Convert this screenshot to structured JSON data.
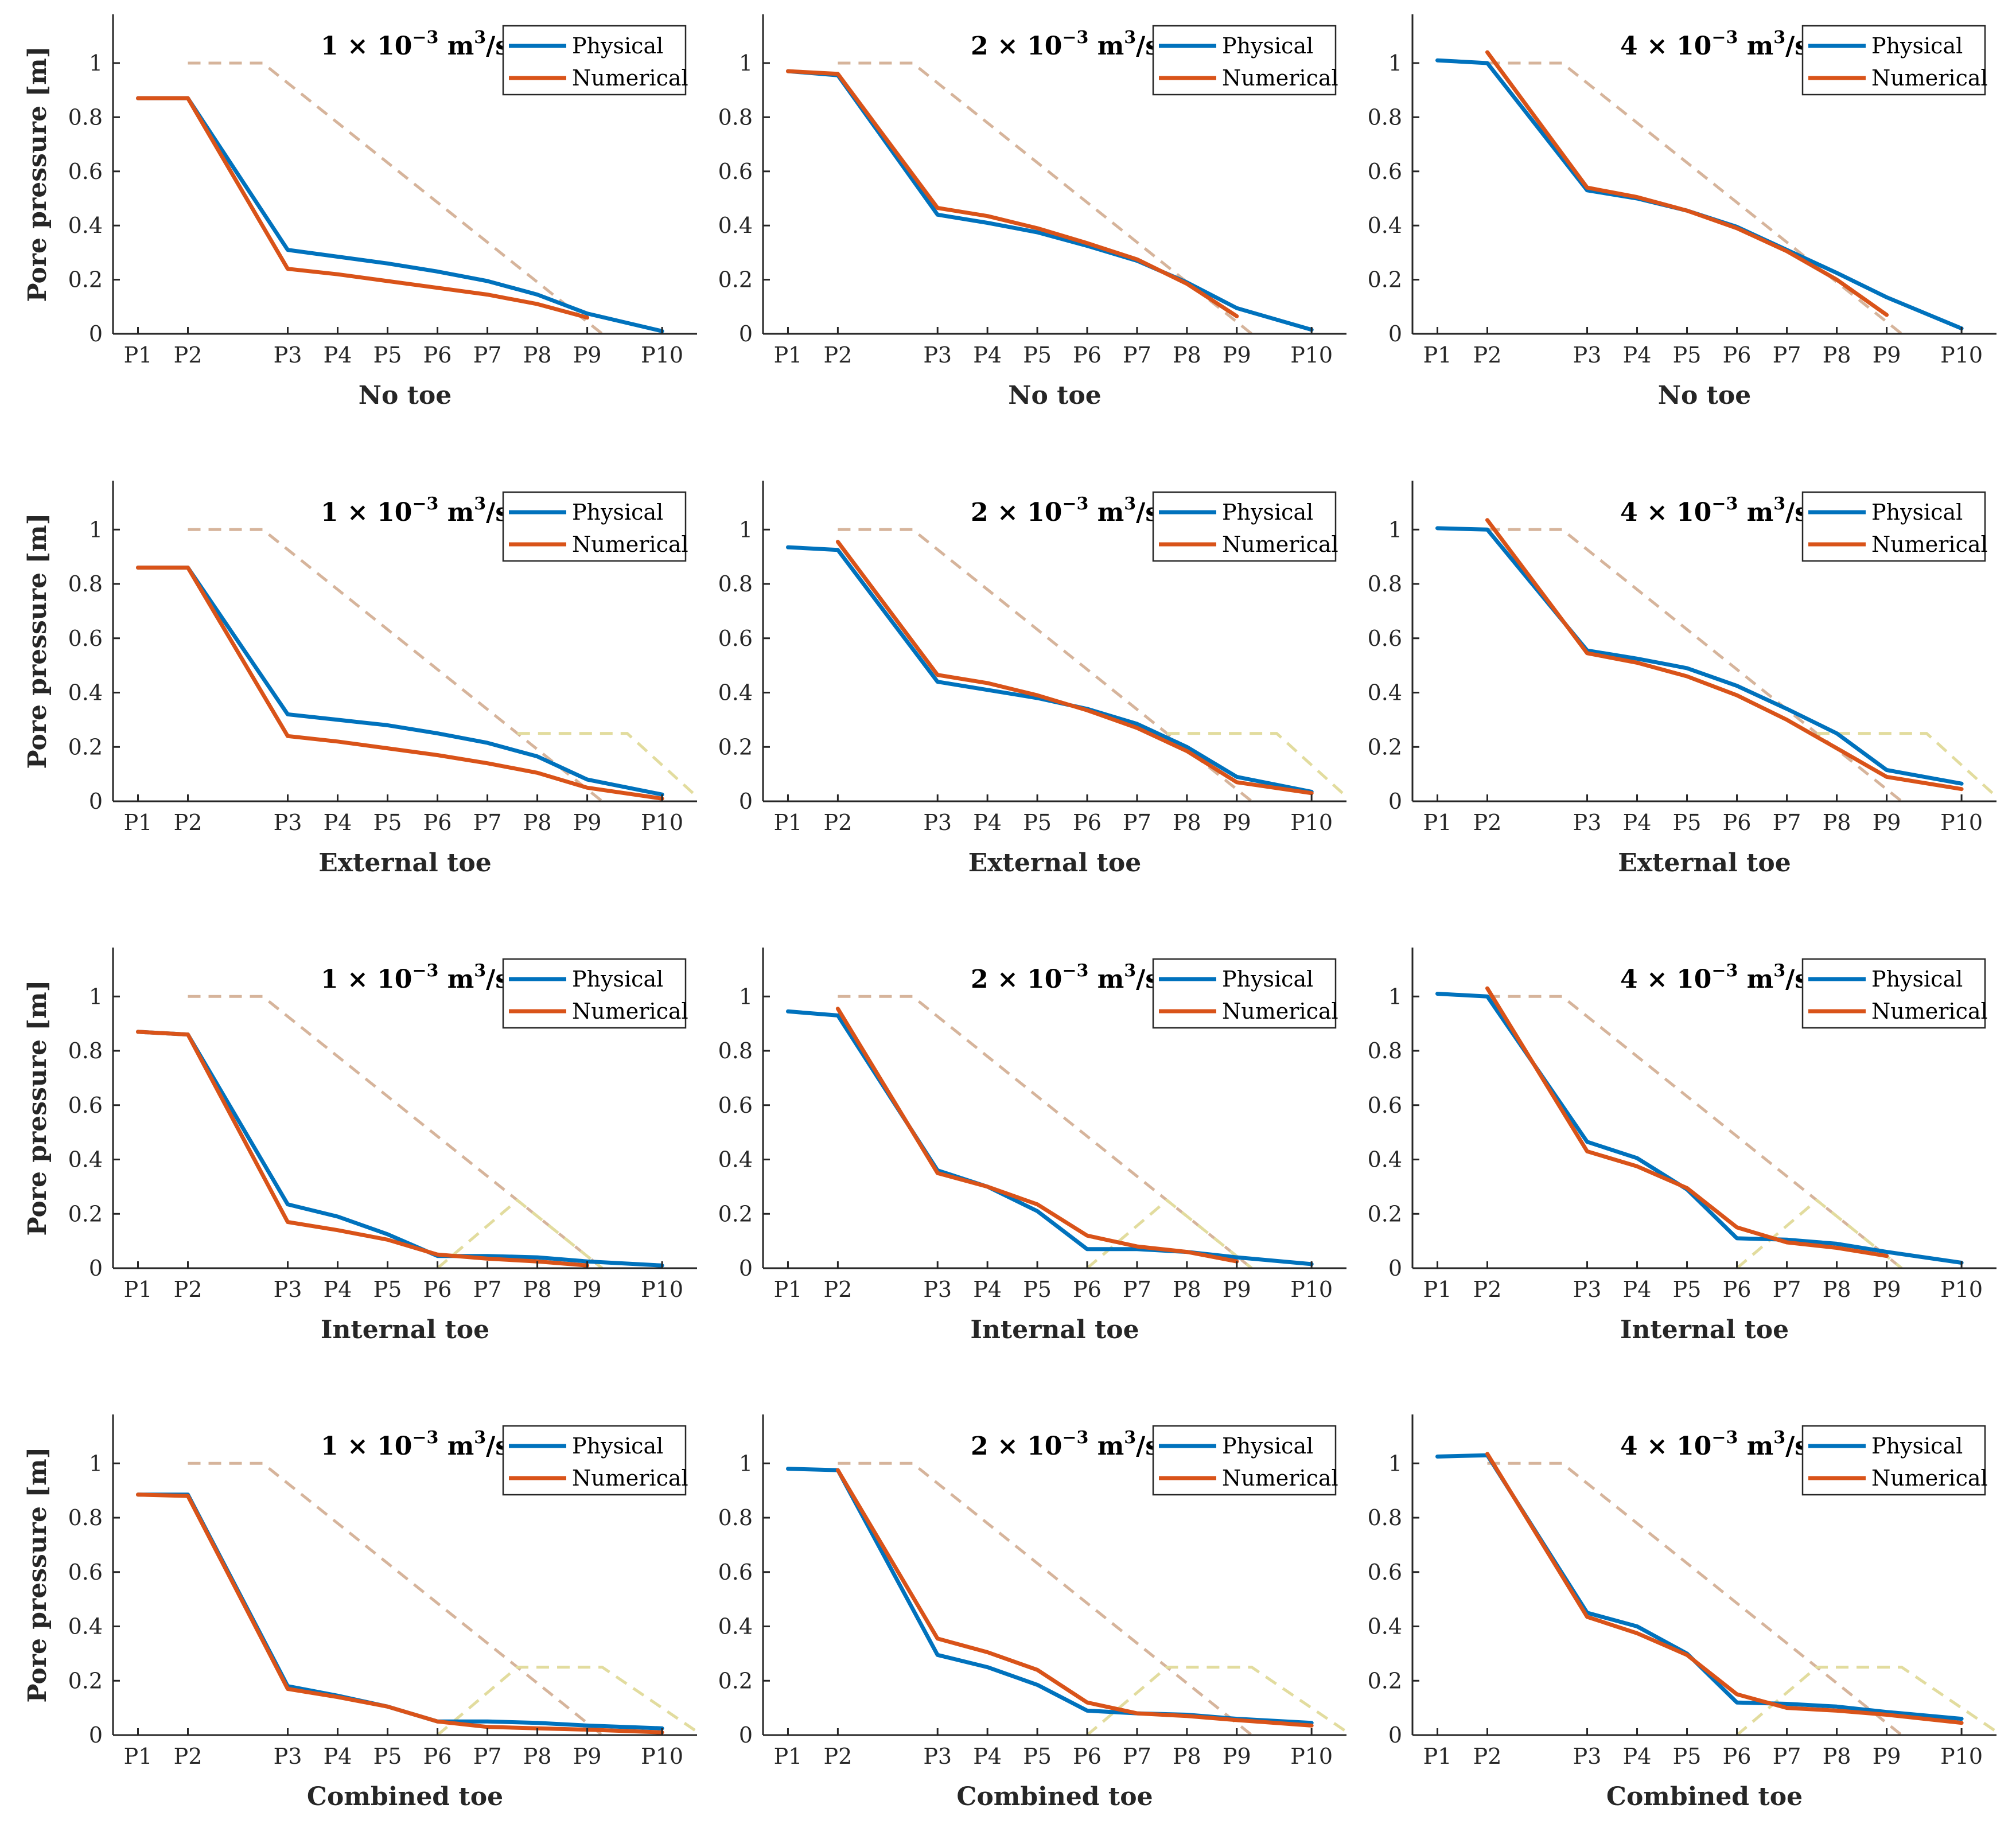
{
  "colors": {
    "physical": "#0072BD",
    "numerical": "#D95319",
    "embankment": "#d6b49b",
    "toe": "#e2dc9e",
    "axis": "#262626"
  },
  "legend": [
    "Physical",
    "Numerical"
  ],
  "ylabel": "Pore pressure [m]",
  "x_tick_labels": [
    "P1",
    "P2",
    "P3",
    "P4",
    "P5",
    "P6",
    "P7",
    "P8",
    "P9",
    "P10"
  ],
  "x_positions": [
    1,
    2,
    4,
    5,
    6,
    7,
    8,
    9,
    10,
    11.5
  ],
  "y_tick_labels": [
    "0",
    "0.2",
    "0.4",
    "0.6",
    "0.8",
    "1"
  ],
  "chart_data": [
    {
      "type": "line",
      "title": "1 × 10⁻³ m³/s",
      "title_base": "1",
      "xlabel": "No toe",
      "xlim": [
        0.5,
        12.2
      ],
      "ylim": [
        0,
        1.18
      ],
      "physical": [
        0.87,
        0.87,
        0.31,
        0.285,
        0.26,
        0.23,
        0.195,
        0.145,
        0.075,
        0.01
      ],
      "numerical": [
        0.87,
        0.87,
        0.24,
        0.22,
        0.195,
        0.17,
        0.145,
        0.11,
        0.06
      ],
      "embankment": [
        [
          2,
          1.0
        ],
        [
          3.5,
          1.0
        ],
        [
          10.3,
          0
        ]
      ],
      "toe": []
    },
    {
      "type": "line",
      "title": "2 × 10⁻³ m³/s",
      "title_base": "2",
      "xlabel": "No toe",
      "xlim": [
        0.5,
        12.2
      ],
      "ylim": [
        0,
        1.18
      ],
      "physical": [
        0.97,
        0.955,
        0.44,
        0.41,
        0.375,
        0.325,
        0.27,
        0.19,
        0.095,
        0.015
      ],
      "numerical": [
        0.97,
        0.96,
        0.465,
        0.435,
        0.39,
        0.335,
        0.275,
        0.185,
        0.065
      ],
      "embankment": [
        [
          2,
          1.0
        ],
        [
          3.5,
          1.0
        ],
        [
          10.3,
          0
        ]
      ],
      "toe": []
    },
    {
      "type": "line",
      "title": "4 × 10⁻³ m³/s",
      "title_base": "4",
      "xlabel": "No toe",
      "xlim": [
        0.5,
        12.2
      ],
      "ylim": [
        0,
        1.18
      ],
      "physical": [
        1.01,
        1.0,
        0.53,
        0.5,
        0.455,
        0.395,
        0.31,
        0.225,
        0.135,
        0.02
      ],
      "numerical": [
        null,
        1.04,
        0.54,
        0.505,
        0.455,
        0.39,
        0.305,
        0.2,
        0.07
      ],
      "embankment": [
        [
          2,
          1.0
        ],
        [
          3.5,
          1.0
        ],
        [
          10.3,
          0
        ]
      ],
      "toe": []
    },
    {
      "type": "line",
      "title": "1 × 10⁻³ m³/s",
      "title_base": "1",
      "xlabel": "External toe",
      "xlim": [
        0.5,
        12.2
      ],
      "ylim": [
        0,
        1.18
      ],
      "physical": [
        0.86,
        0.86,
        0.32,
        0.3,
        0.28,
        0.25,
        0.215,
        0.165,
        0.08,
        0.025
      ],
      "numerical": [
        0.86,
        0.86,
        0.24,
        0.22,
        0.195,
        0.17,
        0.14,
        0.105,
        0.05,
        0.01
      ],
      "embankment": [
        [
          2,
          1.0
        ],
        [
          3.5,
          1.0
        ],
        [
          10.3,
          0
        ]
      ],
      "toe": [
        [
          8.6,
          0.25
        ],
        [
          10.8,
          0.25
        ],
        [
          12.3,
          0
        ]
      ]
    },
    {
      "type": "line",
      "title": "2 × 10⁻³ m³/s",
      "title_base": "2",
      "xlabel": "External toe",
      "xlim": [
        0.5,
        12.2
      ],
      "ylim": [
        0,
        1.18
      ],
      "physical": [
        0.935,
        0.925,
        0.44,
        0.41,
        0.38,
        0.34,
        0.285,
        0.2,
        0.09,
        0.035
      ],
      "numerical": [
        null,
        0.955,
        0.465,
        0.435,
        0.39,
        0.335,
        0.27,
        0.185,
        0.07,
        0.03
      ],
      "embankment": [
        [
          2,
          1.0
        ],
        [
          3.5,
          1.0
        ],
        [
          10.3,
          0
        ]
      ],
      "toe": [
        [
          8.6,
          0.25
        ],
        [
          10.8,
          0.25
        ],
        [
          12.3,
          0
        ]
      ]
    },
    {
      "type": "line",
      "title": "4 × 10⁻³ m³/s",
      "title_base": "4",
      "xlabel": "External toe",
      "xlim": [
        0.5,
        12.2
      ],
      "ylim": [
        0,
        1.18
      ],
      "physical": [
        1.005,
        1.0,
        0.555,
        0.525,
        0.49,
        0.425,
        0.34,
        0.25,
        0.115,
        0.065
      ],
      "numerical": [
        null,
        1.035,
        0.545,
        0.51,
        0.46,
        0.39,
        0.3,
        0.195,
        0.09,
        0.045
      ],
      "embankment": [
        [
          2,
          1.0
        ],
        [
          3.5,
          1.0
        ],
        [
          10.3,
          0
        ]
      ],
      "toe": [
        [
          8.6,
          0.25
        ],
        [
          10.8,
          0.25
        ],
        [
          12.3,
          0
        ]
      ]
    },
    {
      "type": "line",
      "title": "1 × 10⁻³ m³/s",
      "title_base": "1",
      "xlabel": "Internal toe",
      "xlim": [
        0.5,
        12.2
      ],
      "ylim": [
        0,
        1.18
      ],
      "physical": [
        0.87,
        0.86,
        0.235,
        0.19,
        0.125,
        0.045,
        0.045,
        0.04,
        0.025,
        0.01
      ],
      "numerical": [
        0.87,
        0.86,
        0.17,
        0.14,
        0.105,
        0.05,
        0.035,
        0.025,
        0.01
      ],
      "embankment": [
        [
          2,
          1.0
        ],
        [
          3.5,
          1.0
        ],
        [
          10.3,
          0
        ]
      ],
      "toe": [
        [
          7.0,
          0
        ],
        [
          8.6,
          0.25
        ],
        [
          10.3,
          0
        ]
      ]
    },
    {
      "type": "line",
      "title": "2 × 10⁻³ m³/s",
      "title_base": "2",
      "xlabel": "Internal toe",
      "xlim": [
        0.5,
        12.2
      ],
      "ylim": [
        0,
        1.18
      ],
      "physical": [
        0.945,
        0.93,
        0.36,
        0.3,
        0.21,
        0.07,
        0.07,
        0.06,
        0.04,
        0.015
      ],
      "numerical": [
        null,
        0.955,
        0.35,
        0.3,
        0.235,
        0.12,
        0.08,
        0.06,
        0.025
      ],
      "embankment": [
        [
          2,
          1.0
        ],
        [
          3.5,
          1.0
        ],
        [
          10.3,
          0
        ]
      ],
      "toe": [
        [
          7.0,
          0
        ],
        [
          8.6,
          0.25
        ],
        [
          10.3,
          0
        ]
      ]
    },
    {
      "type": "line",
      "title": "4 × 10⁻³ m³/s",
      "title_base": "4",
      "xlabel": "Internal toe",
      "xlim": [
        0.5,
        12.2
      ],
      "ylim": [
        0,
        1.18
      ],
      "physical": [
        1.01,
        1.0,
        0.465,
        0.405,
        0.29,
        0.11,
        0.105,
        0.09,
        0.06,
        0.02
      ],
      "numerical": [
        null,
        1.03,
        0.43,
        0.375,
        0.295,
        0.15,
        0.095,
        0.075,
        0.045
      ],
      "embankment": [
        [
          2,
          1.0
        ],
        [
          3.5,
          1.0
        ],
        [
          10.3,
          0
        ]
      ],
      "toe": [
        [
          7.0,
          0
        ],
        [
          8.6,
          0.25
        ],
        [
          10.3,
          0
        ]
      ]
    },
    {
      "type": "line",
      "title": "1 × 10⁻³ m³/s",
      "title_base": "1",
      "xlabel": "Combined toe",
      "xlim": [
        0.5,
        12.2
      ],
      "ylim": [
        0,
        1.18
      ],
      "physical": [
        0.885,
        0.885,
        0.18,
        0.145,
        0.105,
        0.05,
        0.05,
        0.045,
        0.035,
        0.025
      ],
      "numerical": [
        0.885,
        0.88,
        0.17,
        0.14,
        0.105,
        0.05,
        0.03,
        0.025,
        0.02,
        0.01
      ],
      "embankment": [
        [
          2,
          1.0
        ],
        [
          3.5,
          1.0
        ],
        [
          10.3,
          0
        ]
      ],
      "toe": [
        [
          7.0,
          0
        ],
        [
          8.6,
          0.25
        ],
        [
          10.3,
          0.25
        ],
        [
          12.3,
          0
        ]
      ]
    },
    {
      "type": "line",
      "title": "2 × 10⁻³ m³/s",
      "title_base": "2",
      "xlabel": "Combined toe",
      "xlim": [
        0.5,
        12.2
      ],
      "ylim": [
        0,
        1.18
      ],
      "physical": [
        0.98,
        0.975,
        0.295,
        0.25,
        0.185,
        0.09,
        0.08,
        0.075,
        0.06,
        0.045
      ],
      "numerical": [
        null,
        0.975,
        0.355,
        0.305,
        0.24,
        0.12,
        0.08,
        0.07,
        0.055,
        0.035
      ],
      "embankment": [
        [
          2,
          1.0
        ],
        [
          3.5,
          1.0
        ],
        [
          10.3,
          0
        ]
      ],
      "toe": [
        [
          7.0,
          0
        ],
        [
          8.6,
          0.25
        ],
        [
          10.3,
          0.25
        ],
        [
          12.3,
          0
        ]
      ]
    },
    {
      "type": "line",
      "title": "4 × 10⁻³ m³/s",
      "title_base": "4",
      "xlabel": "Combined toe",
      "xlim": [
        0.5,
        12.2
      ],
      "ylim": [
        0,
        1.18
      ],
      "physical": [
        1.025,
        1.03,
        0.45,
        0.4,
        0.3,
        0.12,
        0.115,
        0.105,
        0.085,
        0.06
      ],
      "numerical": [
        null,
        1.035,
        0.435,
        0.375,
        0.295,
        0.15,
        0.1,
        0.09,
        0.075,
        0.045
      ],
      "embankment": [
        [
          2,
          1.0
        ],
        [
          3.5,
          1.0
        ],
        [
          10.3,
          0
        ]
      ],
      "toe": [
        [
          7.0,
          0
        ],
        [
          8.6,
          0.25
        ],
        [
          10.3,
          0.25
        ],
        [
          12.3,
          0
        ]
      ]
    }
  ]
}
